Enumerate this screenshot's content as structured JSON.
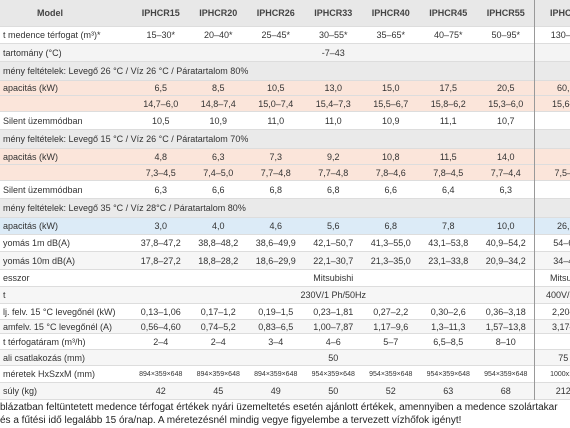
{
  "header": {
    "title": "Model",
    "columns": [
      "IPHCR15",
      "IPHCR20",
      "IPHCR26",
      "IPHCR33",
      "IPHCR40",
      "IPHCR45",
      "IPHCR55",
      "IPHC1"
    ]
  },
  "rows": [
    {
      "label": "t medence térfogat (m³)*",
      "cells": [
        "15–30*",
        "20–40*",
        "25–45*",
        "30–55*",
        "35–65*",
        "40–75*",
        "50–95*",
        "130–2"
      ]
    },
    {
      "label": "tartomány (°C)",
      "merged": "-7–43"
    },
    {
      "section": "mény feltételek: Levegő 26 °C / Víz 26 °C / Páratartalom 80%"
    },
    {
      "label": "apacitás (kW)",
      "cells": [
        "6,5",
        "8,5",
        "10,5",
        "13,0",
        "15,0",
        "17,5",
        "20,5",
        "60,"
      ]
    },
    {
      "cells": [
        "14,7–6,0",
        "14,8–7,4",
        "15,0–7,4",
        "15,4–7,3",
        "15,5–6,7",
        "15,8–6,2",
        "15,3–6,0",
        "15,6–"
      ]
    },
    {
      "label": "Silent üzemmódban",
      "cells": [
        "10,5",
        "10,9",
        "11,0",
        "11,0",
        "10,9",
        "11,1",
        "10,7"
      ]
    },
    {
      "section": "mény feltételek: Levegő 15 °C / Víz 26 °C / Páratartalom 70%"
    },
    {
      "label": "apacitás (kW)",
      "cells": [
        "4,8",
        "6,3",
        "7,3",
        "9,2",
        "10,8",
        "11,5",
        "14,0"
      ]
    },
    {
      "cells": [
        "7,3–4,5",
        "7,4–5,0",
        "7,7–4,8",
        "7,7–4,8",
        "7,8–4,6",
        "7,8–4,5",
        "7,7–4,4",
        "7,5–"
      ]
    },
    {
      "label": "Silent üzemmódban",
      "cells": [
        "6,3",
        "6,6",
        "6,8",
        "6,8",
        "6,6",
        "6,4",
        "6,3"
      ]
    },
    {
      "section": "mény feltételek: Levegő 35 °C / Víz 28°C / Páratartalom 80%"
    },
    {
      "label": "apacitás (kW)",
      "cells": [
        "3,0",
        "4,0",
        "4,6",
        "5,6",
        "6,8",
        "7,8",
        "10,0",
        "26,"
      ]
    },
    {
      "label": "yomás 1m dB(A)",
      "cells": [
        "37,8–47,2",
        "38,8–48,2",
        "38,6–49,9",
        "42,1–50,7",
        "41,3–55,0",
        "43,1–53,8",
        "40,9–54,2",
        "54–6"
      ]
    },
    {
      "label": "yomás 10m dB(A)",
      "cells": [
        "17,8–27,2",
        "18,8–28,2",
        "18,6–29,9",
        "22,1–30,7",
        "21,3–35,0",
        "23,1–33,8",
        "20,9–34,2",
        "34–4"
      ]
    },
    {
      "label": "esszor",
      "merged": "Mitsubishi",
      "last": "Mitsub"
    },
    {
      "label": "t",
      "merged": "230V/1 Ph/50Hz",
      "last": "400V/3P"
    },
    {
      "label": "lj. felv. 15 °C levegőnél (kW)",
      "cells": [
        "0,13–1,06",
        "0,17–1,2",
        "0,19–1,5",
        "0,23–1,81",
        "0,27–2,2",
        "0,30–2,6",
        "0,36–3,18",
        "2,20–"
      ]
    },
    {
      "label": "amfelv. 15 °C levegőnél (A)",
      "cells": [
        "0,56–4,60",
        "0,74–5,2",
        "0,83–6,5",
        "1,00–7,87",
        "1,17–9,6",
        "1,3–11,3",
        "1,57–13,8",
        "3,17–"
      ]
    },
    {
      "label": "t térfogatáram (m³/h)",
      "cells": [
        "2–4",
        "2–4",
        "3–4",
        "4–6",
        "5–7",
        "6,5–8,5",
        "8–10"
      ]
    },
    {
      "label": "ali csatlakozás (mm)",
      "merged": "50",
      "last": "75"
    },
    {
      "label": "méretek HxSzxM (mm)",
      "cells": [
        "894×359×648",
        "894×359×648",
        "894×359×648",
        "954×359×648",
        "954×359×648",
        "954×359×648",
        "954×359×648",
        "1000x11"
      ]
    },
    {
      "label": "súly (kg)",
      "cells": [
        "42",
        "45",
        "49",
        "50",
        "52",
        "63",
        "68",
        "212"
      ]
    }
  ],
  "footnote": [
    "blázatban feltüntetett medence térfogat értékek nyári üzemeltetés esetén ajánlott értékek, amennyiben a medence szolártakar",
    "és a fűtési idő legalább 15 óra/nap. A méretezésnél mindig vegye figyelembe a tervezett vízhőfok igényt!"
  ]
}
